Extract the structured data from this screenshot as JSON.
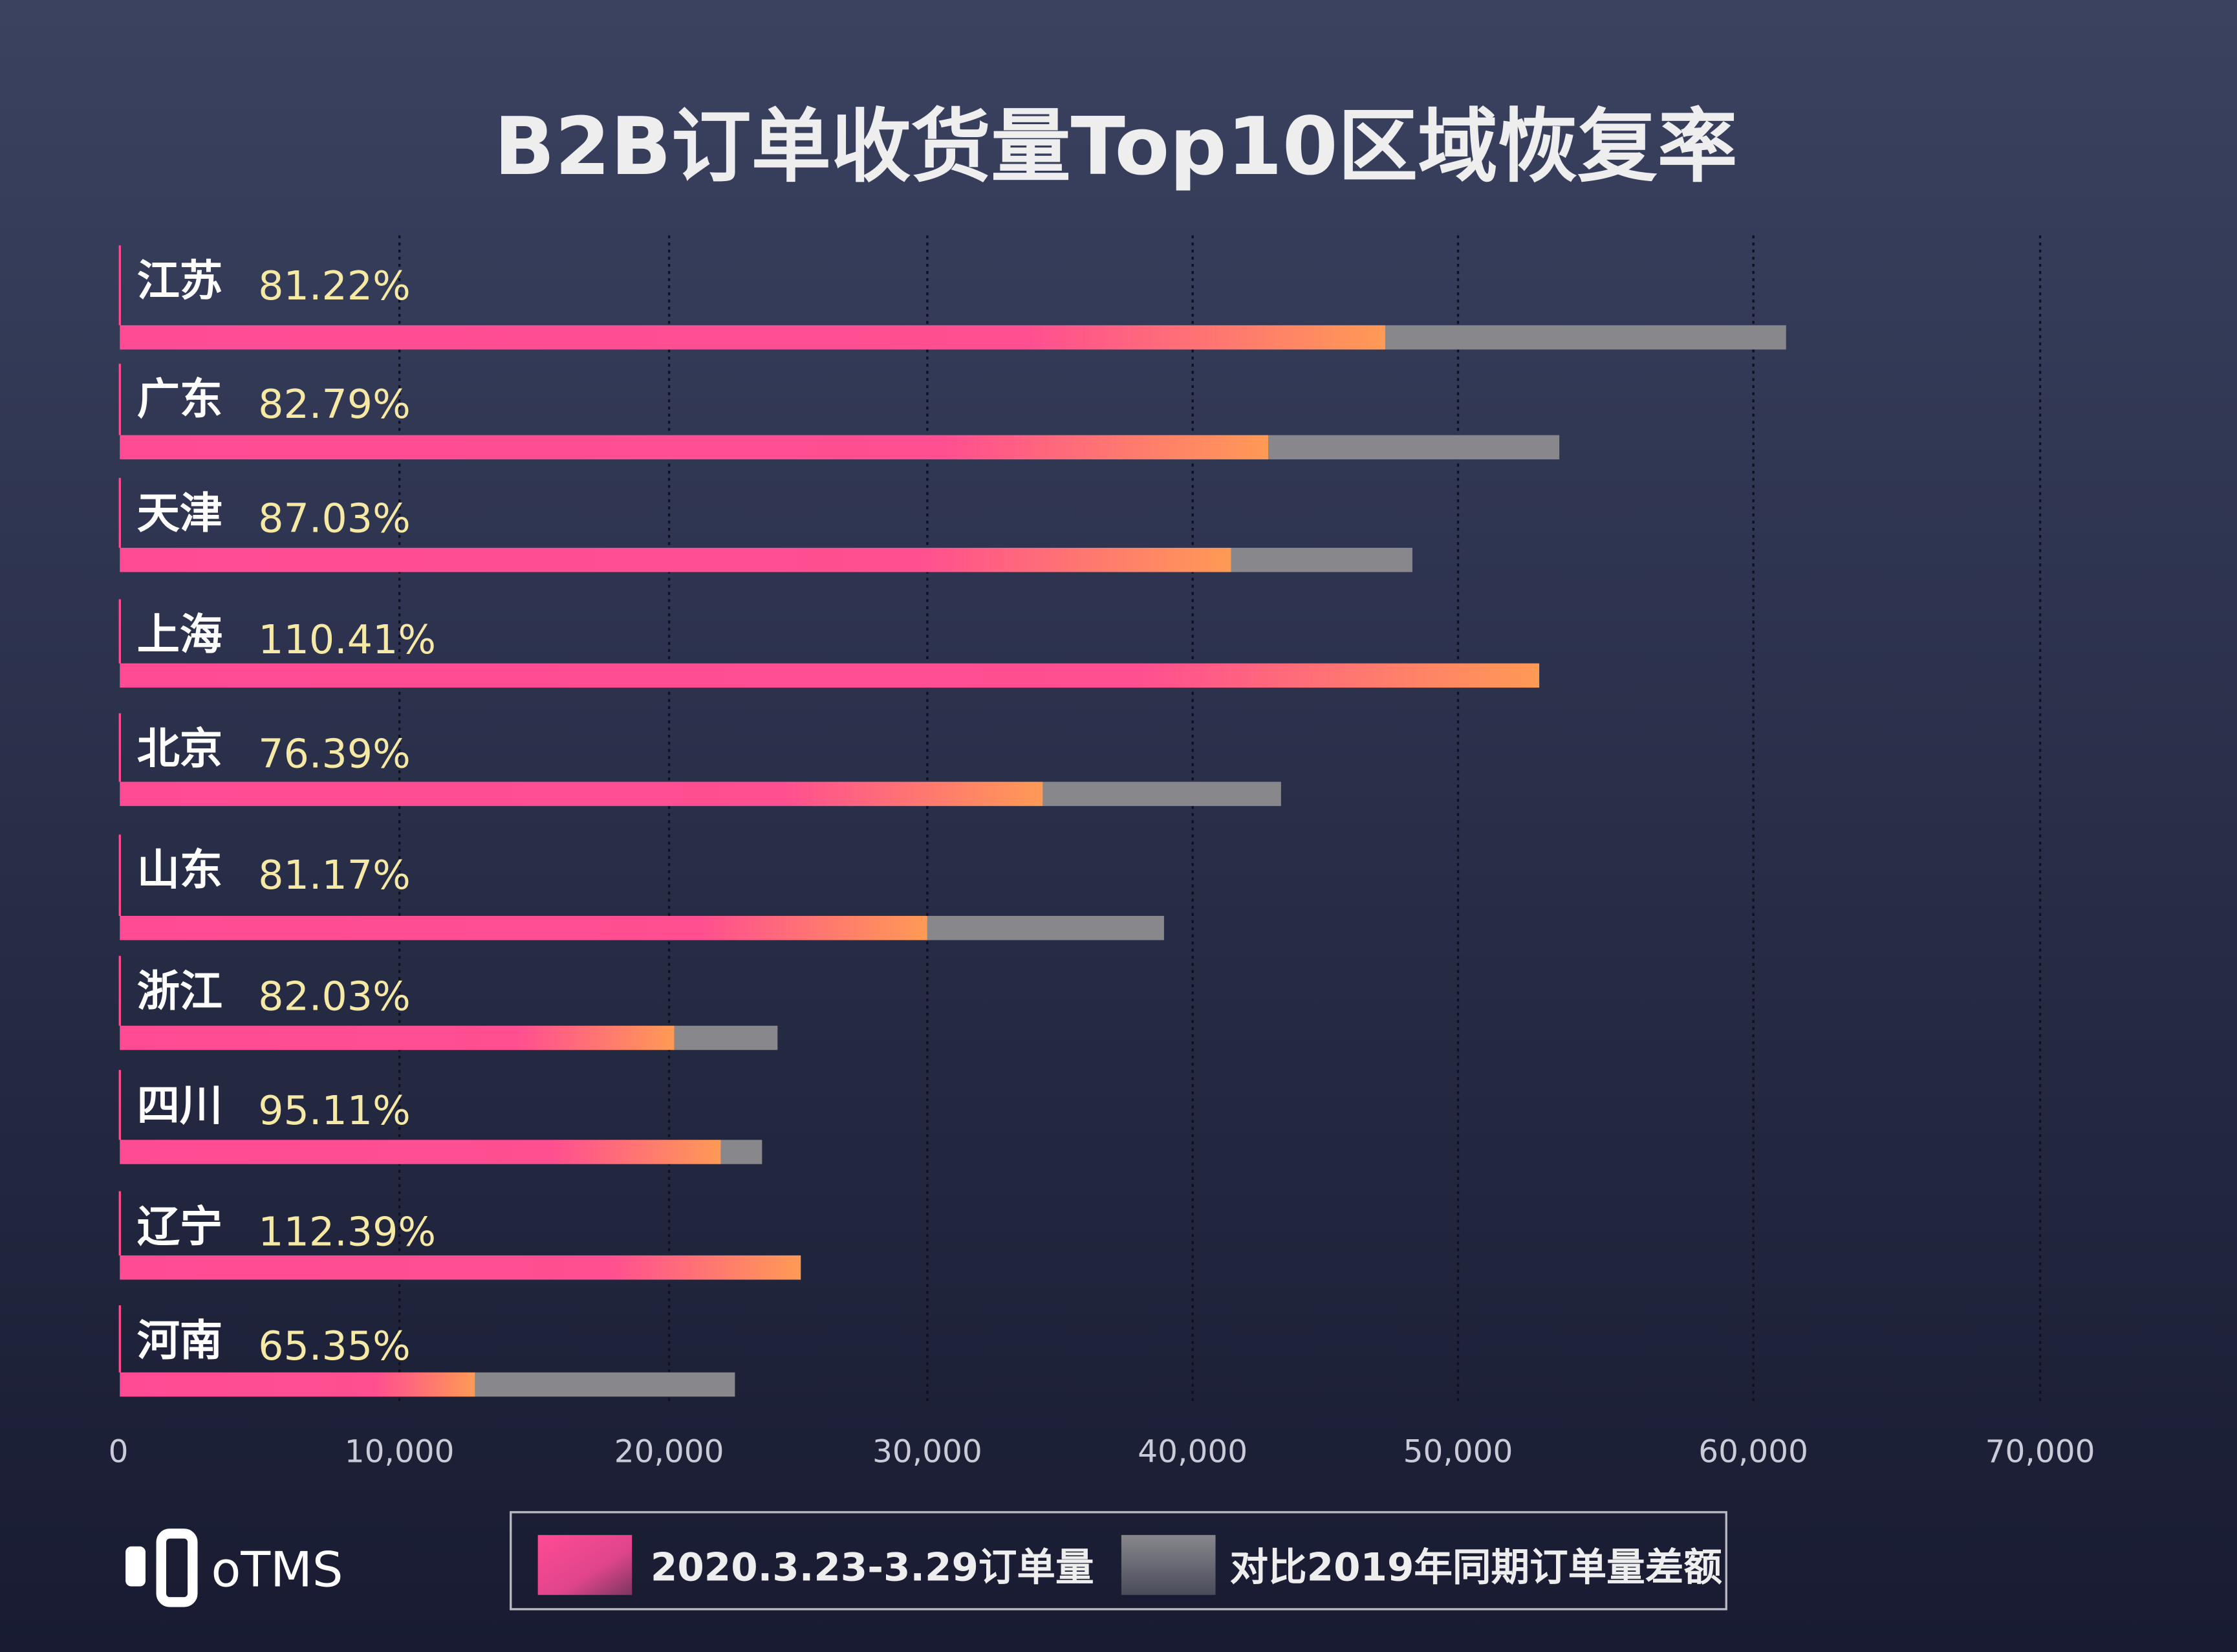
{
  "chart_data": {
    "type": "bar",
    "orientation": "horizontal",
    "stacked": true,
    "title": "B2B订单收货量Top10区域恢复率",
    "categories": [
      "江苏",
      "广东",
      "天津",
      "上海",
      "北京",
      "山东",
      "浙江",
      "四川",
      "辽宁",
      "河南"
    ],
    "recovery_rates": [
      "81.22%",
      "82.79%",
      "87.03%",
      "110.41%",
      "76.39%",
      "81.17%",
      "82.03%",
      "95.11%",
      "112.39%",
      "65.35%"
    ],
    "series": [
      {
        "name": "2020.3.23-3.29订单量",
        "values": [
          47260,
          42850,
          41450,
          52750,
          34350,
          30000,
          20200,
          22000,
          25100,
          12800
        ]
      },
      {
        "name": "对比2019年同期订单量差额",
        "values": [
          13880,
          10580,
          6830,
          0,
          8980,
          8920,
          4000,
          1600,
          0,
          9750
        ]
      }
    ],
    "xticks": [
      "0",
      "10,000",
      "20,000",
      "30,000",
      "40,000",
      "50,000",
      "60,000",
      "70,000"
    ],
    "xtick_values": [
      0,
      10000,
      20000,
      30000,
      40000,
      50000,
      60000,
      70000
    ],
    "xlim": [
      0,
      70000
    ],
    "grid": true,
    "legend_position": "bottom-center"
  },
  "logo": {
    "text": "oTMS"
  },
  "colors": {
    "bg_top": "#3a4260",
    "bg_bottom": "#181b31",
    "pink": "#ff4b94",
    "orange": "#ff9a55",
    "gray": "#87878c",
    "pct": "#f6e9a6"
  }
}
